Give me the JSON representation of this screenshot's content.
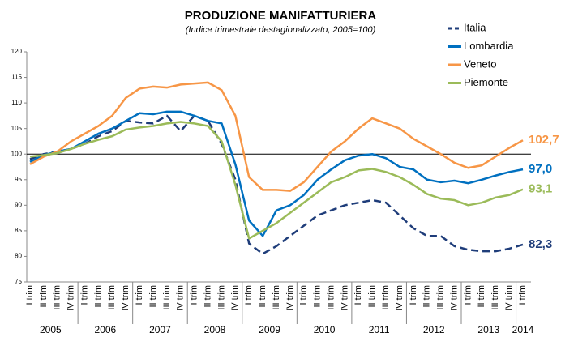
{
  "chart_data": {
    "type": "line",
    "title": "PRODUZIONE MANIFATTURIERA",
    "subtitle": "(Indice trimestrale destagionalizzato, 2005=100)",
    "categories": [
      "I trim",
      "II trim",
      "III trim",
      "IV trim",
      "I trim",
      "II trim",
      "III trim",
      "IV trim",
      "I trim",
      "II trim",
      "III trim",
      "IV trim",
      "I trim",
      "II trim",
      "III trim",
      "IV trim",
      "I trim",
      "II trim",
      "III trim",
      "IV trim",
      "I trim",
      "II trim",
      "III trim",
      "IV trim",
      "I trim",
      "II trim",
      "III trim",
      "IV trim",
      "I trim",
      "II trim",
      "III trim",
      "IV trim",
      "I trim",
      "II trim",
      "III trim",
      "IV trim",
      "I trim"
    ],
    "year_labels": [
      "2005",
      "2006",
      "2007",
      "2008",
      "2009",
      "2010",
      "2011",
      "2012",
      "2013",
      "2014"
    ],
    "ylim": [
      75,
      120
    ],
    "yticks": [
      75,
      80,
      85,
      90,
      95,
      100,
      105,
      110,
      115,
      120
    ],
    "reference_line": 100,
    "legend": "top-right",
    "series": [
      {
        "name": "Italia",
        "color": "#1f3d7a",
        "dashed": true,
        "last_label": "82,3",
        "values": [
          99,
          100,
          100.5,
          101,
          102,
          103.5,
          104.5,
          106.5,
          106.2,
          106,
          107.5,
          104.5,
          107.5,
          106.5,
          102,
          95,
          82.5,
          80.5,
          82,
          84,
          86,
          88,
          89,
          90,
          90.5,
          91,
          90.5,
          88,
          85.5,
          84,
          84,
          82,
          81.3,
          81,
          81,
          81.5,
          82.3
        ]
      },
      {
        "name": "Lombardia",
        "color": "#0070c0",
        "dashed": false,
        "last_label": "97,0",
        "values": [
          98.5,
          99.8,
          100.5,
          101,
          102.5,
          104,
          105,
          106.5,
          108,
          107.8,
          108.3,
          108.3,
          107.5,
          106.5,
          106,
          98,
          87,
          84,
          89,
          90,
          92,
          95,
          97,
          98.8,
          99.7,
          100,
          99.2,
          97.5,
          97,
          95,
          94.5,
          94.8,
          94.3,
          95,
          95.8,
          96.5,
          97.0
        ]
      },
      {
        "name": "Veneto",
        "color": "#f79646",
        "dashed": false,
        "last_label": "102,7",
        "values": [
          98,
          99.5,
          100.5,
          102.5,
          104,
          105.5,
          107.5,
          111,
          112.8,
          113.2,
          113,
          113.6,
          113.8,
          114,
          112.5,
          107.5,
          95.5,
          93,
          93,
          92.8,
          94.5,
          97.5,
          100.5,
          102.5,
          105,
          107,
          106,
          105,
          103,
          101.5,
          100,
          98.3,
          97.3,
          97.8,
          99.5,
          101.2,
          102.7
        ]
      },
      {
        "name": "Piemonte",
        "color": "#9bbb59",
        "dashed": false,
        "last_label": "93,1",
        "values": [
          99.5,
          99.8,
          100.2,
          101,
          102,
          102.8,
          103.5,
          104.8,
          105.2,
          105.5,
          106,
          106.3,
          106,
          105.5,
          102.5,
          94,
          83.5,
          85,
          86.5,
          88.5,
          90.5,
          92.5,
          94.5,
          95.5,
          96.8,
          97.1,
          96.5,
          95.5,
          94,
          92.2,
          91.3,
          91,
          90,
          90.5,
          91.5,
          92,
          93.1
        ]
      }
    ]
  }
}
